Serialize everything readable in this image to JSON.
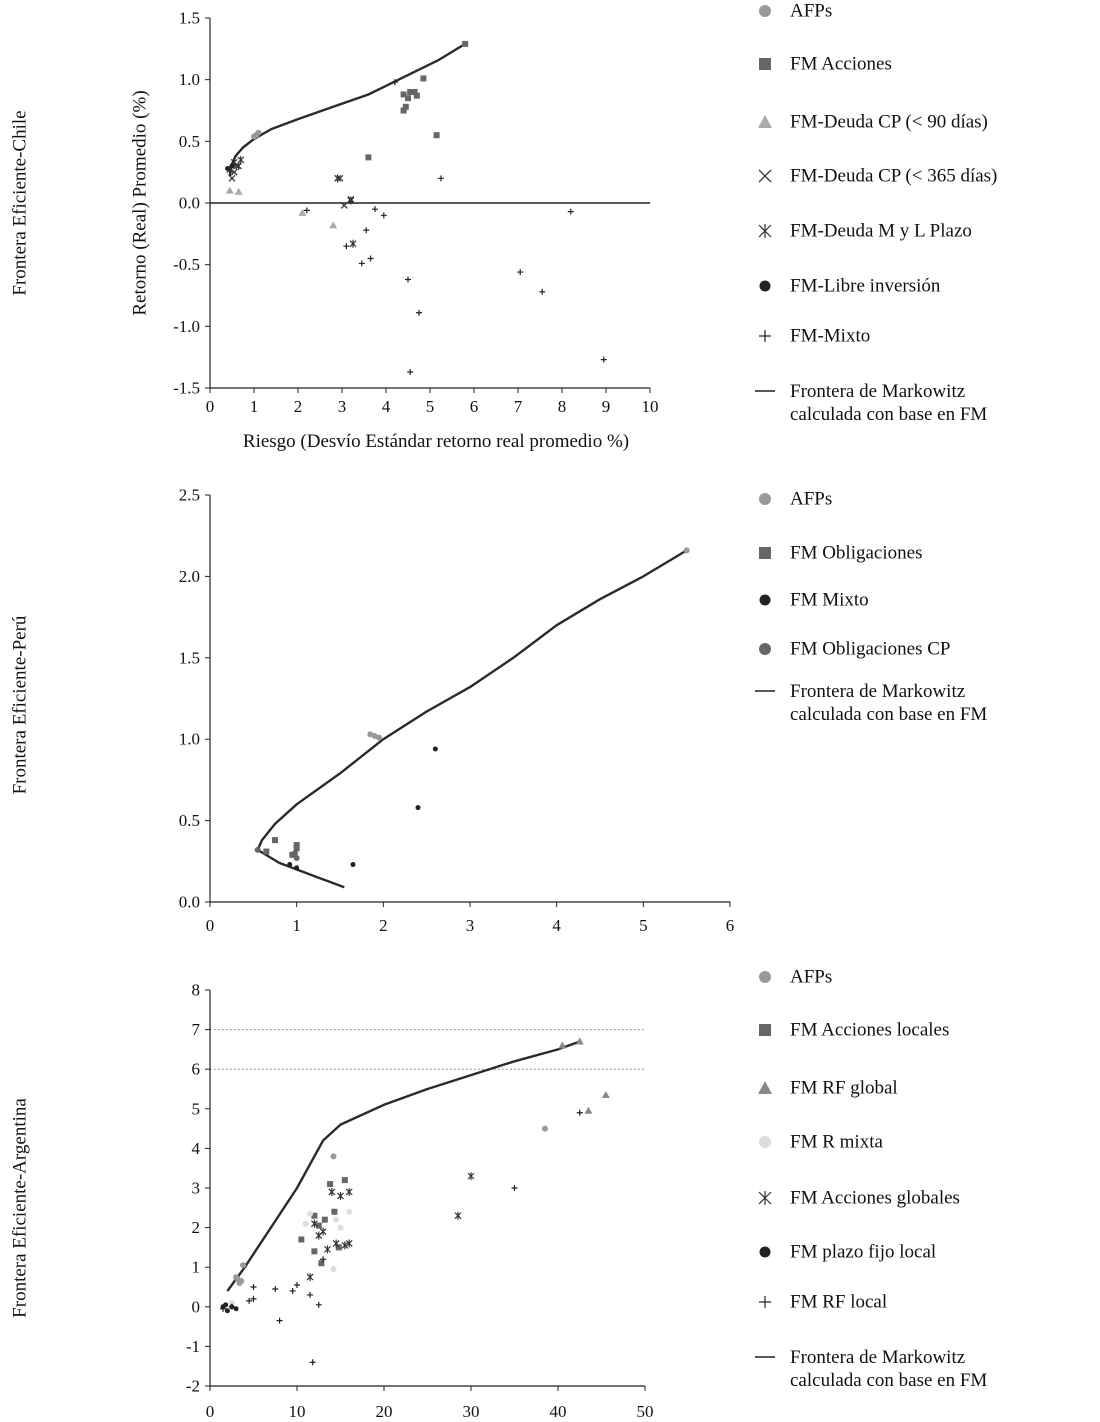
{
  "chart_data": [
    {
      "type": "scatter",
      "panel_title": "Frontera Eficiente-Chile",
      "xlabel": "Riesgo (Desvío Estándar retorno real promedio %)",
      "ylabel": "Retorno (Real) Promedio (%)",
      "xlim": [
        0,
        10
      ],
      "ylim": [
        -1.5,
        1.5
      ],
      "xticks": [
        0,
        1,
        2,
        3,
        4,
        5,
        6,
        7,
        8,
        9,
        10
      ],
      "yticks": [
        1.5,
        1.0,
        0.5,
        0.0,
        -0.5,
        -1.0,
        -1.5
      ],
      "ytick_labels": [
        "1.5",
        "1.0",
        "0.5",
        "0.0",
        "-0.5",
        "-1.0",
        "-1.5"
      ],
      "zero_line": true,
      "legend_position": "right",
      "frontier_label": "Frontera de Markowitz calculada con base en FM",
      "frontier": [
        [
          0.45,
          0.22
        ],
        [
          0.48,
          0.3
        ],
        [
          0.58,
          0.38
        ],
        [
          0.75,
          0.45
        ],
        [
          1.0,
          0.52
        ],
        [
          1.4,
          0.6
        ],
        [
          2.0,
          0.68
        ],
        [
          2.8,
          0.78
        ],
        [
          3.6,
          0.88
        ],
        [
          4.4,
          1.02
        ],
        [
          5.2,
          1.16
        ],
        [
          5.8,
          1.29
        ]
      ],
      "series": [
        {
          "name": "AFPs",
          "marker": "circle",
          "color": "#999999",
          "points": [
            [
              1.05,
              0.55
            ],
            [
              1.1,
              0.57
            ],
            [
              1.0,
              0.54
            ]
          ]
        },
        {
          "name": "FM Acciones",
          "marker": "square",
          "color": "#666666",
          "points": [
            [
              3.6,
              0.37
            ],
            [
              4.4,
              0.75
            ],
            [
              4.45,
              0.78
            ],
            [
              4.4,
              0.88
            ],
            [
              4.5,
              0.85
            ],
            [
              4.55,
              0.9
            ],
            [
              4.65,
              0.9
            ],
            [
              4.7,
              0.87
            ],
            [
              4.85,
              1.01
            ],
            [
              5.15,
              0.55
            ],
            [
              5.8,
              1.29
            ]
          ]
        },
        {
          "name": "FM-Deuda  CP (< 90 días)",
          "marker": "triangle",
          "color": "#aaaaaa",
          "points": [
            [
              0.45,
              0.1
            ],
            [
              0.65,
              0.09
            ],
            [
              2.1,
              -0.08
            ],
            [
              2.8,
              -0.18
            ]
          ]
        },
        {
          "name": "FM-Deuda  CP (< 365 días)",
          "marker": "x",
          "color": "#333333",
          "points": [
            [
              0.5,
              0.2
            ],
            [
              0.6,
              0.3
            ],
            [
              0.55,
              0.25
            ],
            [
              2.95,
              0.2
            ],
            [
              3.05,
              -0.02
            ],
            [
              3.2,
              0.03
            ]
          ]
        },
        {
          "name": "FM-Deuda  M y L Plazo",
          "marker": "asterisk",
          "color": "#333333",
          "points": [
            [
              0.45,
              0.27
            ],
            [
              0.55,
              0.33
            ],
            [
              0.65,
              0.3
            ],
            [
              0.7,
              0.35
            ],
            [
              2.9,
              0.2
            ],
            [
              3.2,
              0.02
            ],
            [
              3.25,
              -0.33
            ]
          ]
        },
        {
          "name": "FM-Libre inversión",
          "marker": "dot",
          "color": "#222222",
          "points": [
            [
              0.4,
              0.28
            ],
            [
              0.5,
              0.3
            ]
          ]
        },
        {
          "name": "FM-Mixto",
          "marker": "plus",
          "color": "#222222",
          "points": [
            [
              2.2,
              -0.06
            ],
            [
              3.1,
              -0.35
            ],
            [
              3.45,
              -0.49
            ],
            [
              3.55,
              -0.22
            ],
            [
              3.65,
              -0.45
            ],
            [
              3.75,
              -0.05
            ],
            [
              3.95,
              -0.1
            ],
            [
              4.2,
              0.98
            ],
            [
              4.5,
              -0.62
            ],
            [
              4.55,
              -1.37
            ],
            [
              4.75,
              -0.89
            ],
            [
              5.25,
              0.2
            ],
            [
              7.05,
              -0.56
            ],
            [
              7.55,
              -0.72
            ],
            [
              8.2,
              -0.07
            ],
            [
              8.95,
              -1.27
            ]
          ]
        }
      ]
    },
    {
      "type": "scatter",
      "panel_title": "Frontera Eficiente-Perú",
      "xlabel": "",
      "ylabel": "",
      "xlim": [
        0,
        6
      ],
      "ylim": [
        0,
        2.5
      ],
      "xticks": [
        0,
        1,
        2,
        3,
        4,
        5,
        6
      ],
      "yticks": [
        2.5,
        2.0,
        1.5,
        1.0,
        0.5,
        0.0
      ],
      "ytick_labels": [
        "2.5",
        "2.0",
        "1.5",
        "1.0",
        "0.5",
        "0.0"
      ],
      "zero_line": false,
      "legend_position": "right",
      "frontier_label": "Frontera de Markowitz calculada con base en FM",
      "frontier": [
        [
          1.55,
          0.09
        ],
        [
          1.2,
          0.16
        ],
        [
          0.8,
          0.24
        ],
        [
          0.55,
          0.32
        ],
        [
          0.6,
          0.38
        ],
        [
          0.75,
          0.48
        ],
        [
          1.0,
          0.6
        ],
        [
          1.5,
          0.79
        ],
        [
          2.0,
          1.0
        ],
        [
          2.5,
          1.17
        ],
        [
          3.0,
          1.32
        ],
        [
          3.5,
          1.5
        ],
        [
          4.0,
          1.7
        ],
        [
          4.5,
          1.86
        ],
        [
          5.0,
          2.0
        ],
        [
          5.5,
          2.16
        ]
      ],
      "series": [
        {
          "name": "AFPs",
          "marker": "circle",
          "color": "#999999",
          "points": [
            [
              1.85,
              1.03
            ],
            [
              1.9,
              1.02
            ],
            [
              1.95,
              1.01
            ],
            [
              5.5,
              2.16
            ]
          ]
        },
        {
          "name": "FM Obligaciones",
          "marker": "square",
          "color": "#666666",
          "points": [
            [
              0.75,
              0.38
            ],
            [
              0.95,
              0.29
            ],
            [
              1.0,
              0.35
            ],
            [
              1.0,
              0.33
            ],
            [
              0.65,
              0.31
            ]
          ]
        },
        {
          "name": "FM Mixto",
          "marker": "dot",
          "color": "#222222",
          "points": [
            [
              0.92,
              0.23
            ],
            [
              1.0,
              0.21
            ],
            [
              1.65,
              0.23
            ],
            [
              2.4,
              0.58
            ],
            [
              2.6,
              0.94
            ]
          ]
        },
        {
          "name": "FM Obligaciones CP",
          "marker": "circle",
          "color": "#666666",
          "points": [
            [
              1.0,
              0.27
            ],
            [
              0.98,
              0.3
            ],
            [
              0.55,
              0.32
            ]
          ]
        }
      ]
    },
    {
      "type": "scatter",
      "panel_title": "Frontera Eficiente-Argentina",
      "xlabel": "",
      "ylabel": "",
      "xlim": [
        0,
        50
      ],
      "ylim": [
        -2,
        8
      ],
      "xticks": [
        0,
        10,
        20,
        30,
        40,
        50
      ],
      "yticks": [
        8,
        7,
        6,
        5,
        4,
        3,
        2,
        1,
        0,
        -1,
        -2
      ],
      "ytick_labels": [
        "8",
        "7",
        "6",
        "5",
        "4",
        "3",
        "2",
        "1",
        "0",
        "-1",
        "-2"
      ],
      "zero_line": false,
      "dotted_gridlines": [
        7,
        6
      ],
      "legend_position": "right",
      "frontier_label": "Frontera de Markowitz calculada con base en FM",
      "frontier": [
        [
          2.0,
          0.4
        ],
        [
          4.0,
          1.0
        ],
        [
          7.0,
          2.0
        ],
        [
          10.0,
          3.0
        ],
        [
          13.0,
          4.2
        ],
        [
          15.0,
          4.6
        ],
        [
          20.0,
          5.1
        ],
        [
          25.0,
          5.5
        ],
        [
          30.0,
          5.85
        ],
        [
          35.0,
          6.2
        ],
        [
          40.0,
          6.5
        ],
        [
          42.5,
          6.7
        ]
      ],
      "series": [
        {
          "name": "AFPs",
          "marker": "circle",
          "color": "#999999",
          "points": [
            [
              3.2,
              0.7
            ],
            [
              3.4,
              0.6
            ],
            [
              3.6,
              0.65
            ],
            [
              3.0,
              0.75
            ],
            [
              3.8,
              1.05
            ],
            [
              14.2,
              3.8
            ],
            [
              38.5,
              4.5
            ]
          ]
        },
        {
          "name": "FM Acciones locales",
          "marker": "square",
          "color": "#666666",
          "points": [
            [
              10.5,
              1.7
            ],
            [
              12.0,
              2.3
            ],
            [
              12.5,
              2.05
            ],
            [
              12.8,
              1.1
            ],
            [
              13.2,
              2.2
            ],
            [
              13.8,
              3.1
            ],
            [
              14.3,
              2.4
            ],
            [
              14.8,
              1.5
            ],
            [
              15.5,
              3.2
            ],
            [
              12.0,
              1.4
            ]
          ]
        },
        {
          "name": "FM RF global",
          "marker": "triangle",
          "color": "#888888",
          "points": [
            [
              40.5,
              6.6
            ],
            [
              42.5,
              6.7
            ],
            [
              43.5,
              4.95
            ],
            [
              45.5,
              5.35
            ]
          ]
        },
        {
          "name": "FM R mixta",
          "marker": "circle",
          "color": "#dddddd",
          "points": [
            [
              11.0,
              2.1
            ],
            [
              11.5,
              2.35
            ],
            [
              14.5,
              2.2
            ],
            [
              15.0,
              2.0
            ],
            [
              14.2,
              0.95
            ],
            [
              16.0,
              2.4
            ],
            [
              2.5,
              0.1
            ]
          ]
        },
        {
          "name": "FM Acciones globales",
          "marker": "asterisk",
          "color": "#333333",
          "points": [
            [
              11.5,
              0.75
            ],
            [
              12.0,
              2.1
            ],
            [
              13.0,
              1.9
            ],
            [
              14.0,
              2.9
            ],
            [
              14.5,
              1.6
            ],
            [
              15.0,
              2.8
            ],
            [
              15.5,
              1.55
            ],
            [
              16.0,
              2.9
            ],
            [
              16.0,
              1.6
            ],
            [
              28.5,
              2.3
            ],
            [
              30.0,
              3.3
            ],
            [
              13.5,
              1.45
            ],
            [
              12.5,
              1.8
            ]
          ]
        },
        {
          "name": "FM plazo fijo local",
          "marker": "dot",
          "color": "#222222",
          "points": [
            [
              1.5,
              0.0
            ],
            [
              2.0,
              -0.1
            ],
            [
              3.0,
              -0.05
            ],
            [
              1.8,
              0.05
            ],
            [
              2.5,
              0.0
            ]
          ]
        },
        {
          "name": "FM RF local",
          "marker": "plus",
          "color": "#222222",
          "points": [
            [
              1.5,
              -0.05
            ],
            [
              2.5,
              0.0
            ],
            [
              4.5,
              0.15
            ],
            [
              5.0,
              0.2
            ],
            [
              5.0,
              0.5
            ],
            [
              7.5,
              0.45
            ],
            [
              8.0,
              -0.35
            ],
            [
              9.5,
              0.4
            ],
            [
              10.0,
              0.55
            ],
            [
              11.5,
              0.3
            ],
            [
              11.8,
              -1.4
            ],
            [
              12.5,
              0.05
            ],
            [
              13.0,
              1.2
            ],
            [
              35.0,
              3.0
            ],
            [
              42.5,
              4.9
            ]
          ]
        }
      ]
    }
  ]
}
